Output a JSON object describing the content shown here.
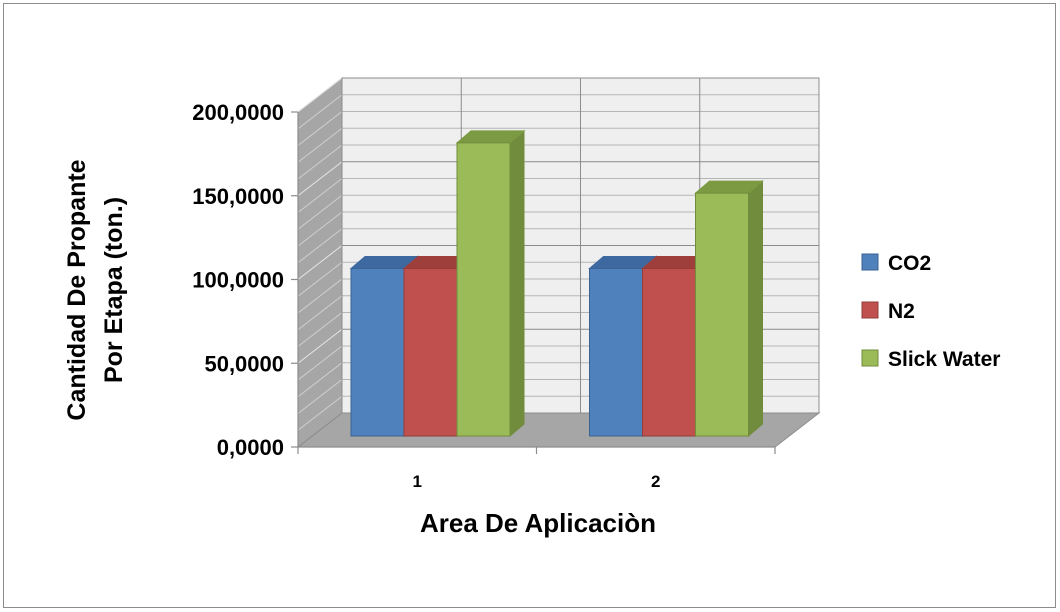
{
  "chart_data": {
    "type": "bar",
    "categories": [
      "1",
      "2"
    ],
    "series": [
      {
        "name": "CO2",
        "values": [
          100,
          100
        ],
        "color": "#4f81bd",
        "side": "#3a6293",
        "top": "#3d68a0"
      },
      {
        "name": "N2",
        "values": [
          100,
          100
        ],
        "color": "#c0504d",
        "side": "#943c3a",
        "top": "#9e3f3c"
      },
      {
        "name": "Slick Water",
        "values": [
          175,
          145
        ],
        "color": "#9bbb59",
        "side": "#718c3c",
        "top": "#7b9a42"
      }
    ],
    "y_ticks": [
      "0,0000",
      "50,0000",
      "100,0000",
      "150,0000",
      "200,0000"
    ],
    "ylim": [
      0,
      200
    ],
    "xlabel": "Area De Aplicaciòn",
    "ylabel_line1": "Cantidad De Propante",
    "ylabel_line2": "Por Etapa (ton.)",
    "grid": true,
    "legend_position": "right"
  }
}
